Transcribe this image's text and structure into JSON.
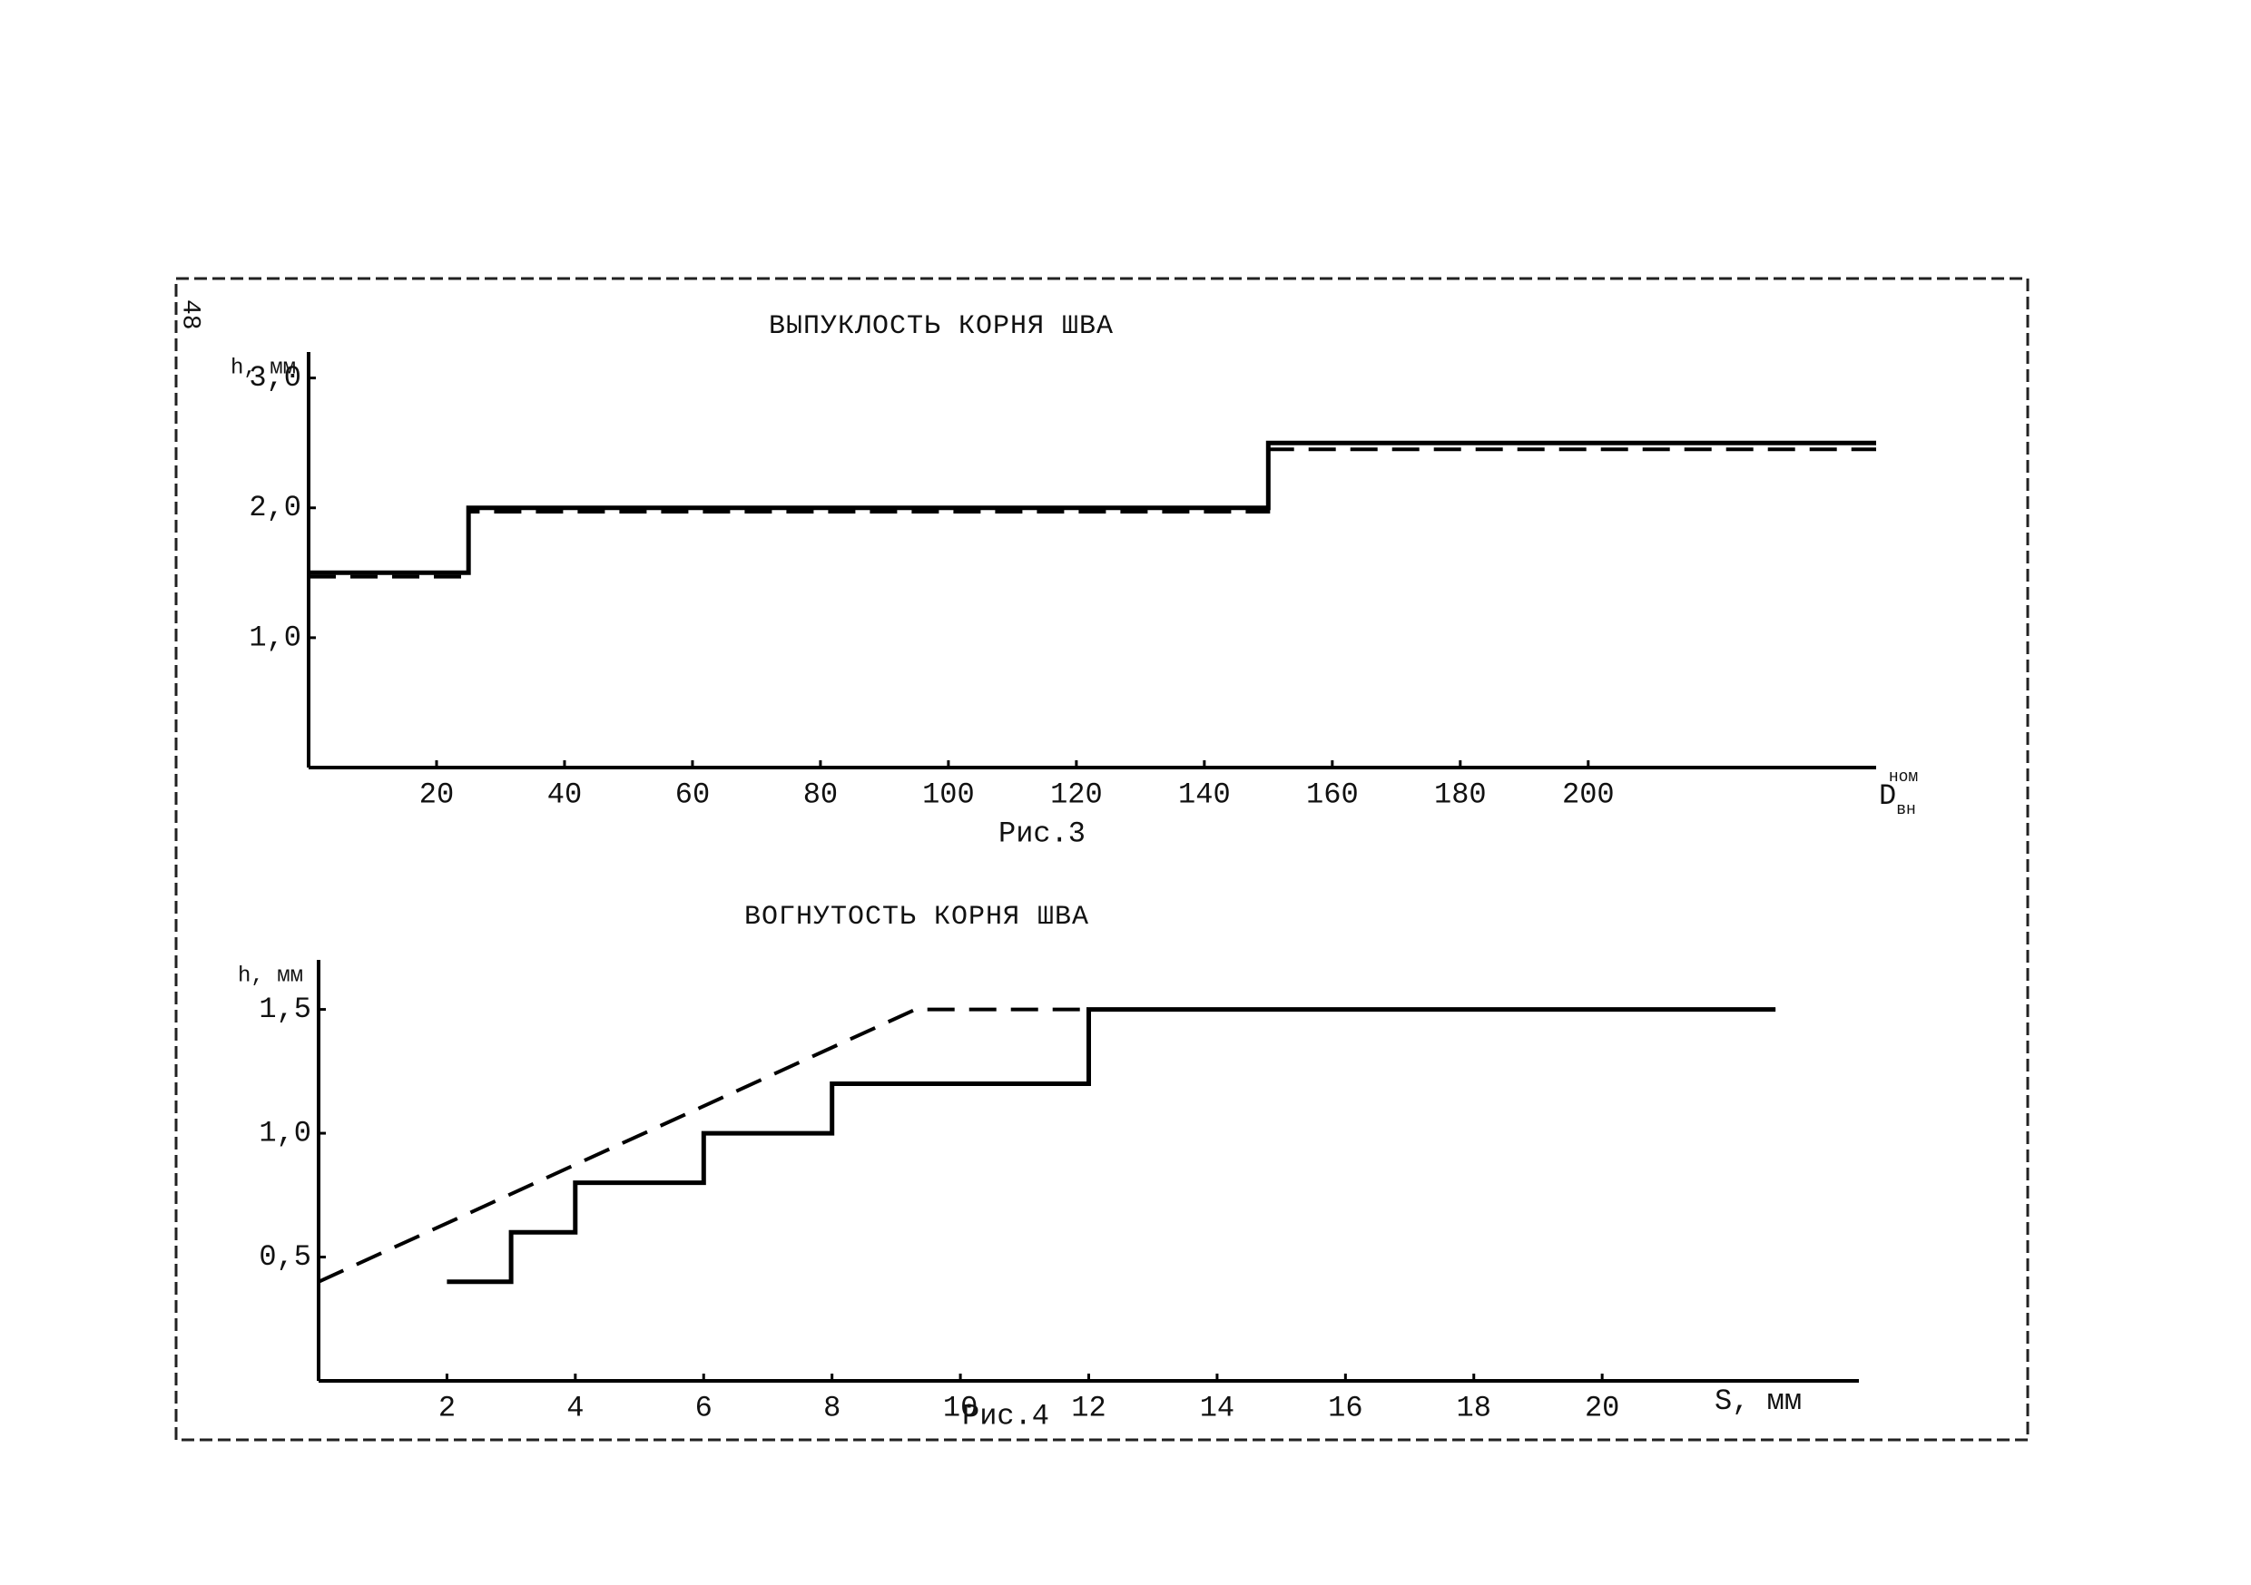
{
  "page_number": "48",
  "chart_data": [
    {
      "type": "line",
      "title": "ВЫПУКЛОСТЬ КОРНЯ ШВА",
      "caption": "Рис.3",
      "y_label": "h, мм",
      "x_label": "D",
      "x_label_sub": "вн",
      "x_label_sup": "ном",
      "xlim": [
        0,
        245
      ],
      "xticks": [
        20,
        40,
        60,
        80,
        100,
        120,
        140,
        160,
        180,
        200
      ],
      "ylim": [
        0,
        3.2
      ],
      "yticks": [
        {
          "value": 1,
          "label": "1,0"
        },
        {
          "value": 2,
          "label": "2,0"
        },
        {
          "value": 3,
          "label": "3,0"
        }
      ],
      "series": [
        {
          "style": "solid",
          "color": "#000",
          "x": [
            0,
            25,
            25,
            150,
            150,
            245
          ],
          "values": [
            1.5,
            1.5,
            2.0,
            2.0,
            2.5,
            2.5
          ]
        },
        {
          "style": "dashed",
          "color": "#000",
          "x": [
            0,
            25,
            25,
            150,
            150,
            245
          ],
          "values": [
            1.47,
            1.47,
            1.97,
            1.97,
            2.45,
            2.45
          ]
        }
      ]
    },
    {
      "type": "line",
      "title": "ВОГНУТОСТЬ КОРНЯ ШВА",
      "caption": "Рис.4",
      "y_label": "h, мм",
      "x_label": "S, мм",
      "xlim": [
        0,
        24
      ],
      "xticks": [
        2,
        4,
        6,
        8,
        10,
        12,
        14,
        16,
        18,
        20
      ],
      "ylim": [
        0,
        1.7
      ],
      "yticks": [
        {
          "value": 0.5,
          "label": "0,5"
        },
        {
          "value": 1,
          "label": "1,0"
        },
        {
          "value": 1.5,
          "label": "1,5"
        }
      ],
      "series": [
        {
          "style": "solid",
          "color": "#000",
          "x": [
            2,
            3,
            3,
            4,
            4,
            6,
            6,
            8,
            8,
            12,
            12,
            22.7
          ],
          "values": [
            0.4,
            0.4,
            0.6,
            0.6,
            0.8,
            0.8,
            1.0,
            1.0,
            1.2,
            1.2,
            1.5,
            1.5
          ]
        },
        {
          "style": "dashed",
          "color": "#000",
          "x": [
            0,
            9.3,
            22.7
          ],
          "values": [
            0.4,
            1.5,
            1.5
          ]
        }
      ]
    }
  ]
}
